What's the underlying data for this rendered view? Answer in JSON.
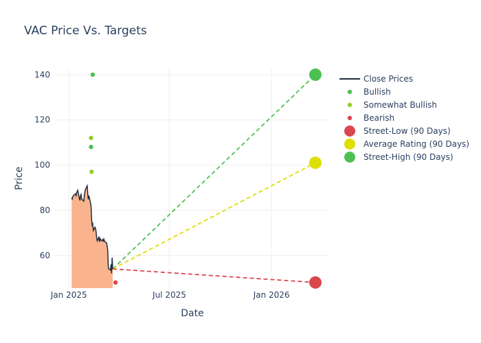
{
  "chart_data": {
    "type": "line",
    "title": "VAC Price Vs. Targets",
    "xlabel": "Date",
    "ylabel": "Price",
    "xlim": [
      "2024-12-07",
      "2026-04-16"
    ],
    "ylim": [
      45.5,
      143
    ],
    "x_ticks": [
      {
        "date": "2025-01-01",
        "label": "Jan 2025"
      },
      {
        "date": "2025-07-01",
        "label": "Jul 2025"
      },
      {
        "date": "2026-01-01",
        "label": "Jan 2026"
      }
    ],
    "y_ticks": [
      60,
      80,
      100,
      120,
      140
    ],
    "grid": true,
    "legend_position": "right",
    "colors": {
      "close": "#1f2d3d",
      "area": "#f9b48e",
      "bullish": "#4cc152",
      "somewhat_bullish": "#8fcf2b",
      "bearish": "#d9474d",
      "street_low": "#d9474d",
      "average": "#dede00",
      "street_high": "#4cc152"
    },
    "series": [
      {
        "name": "Close Prices",
        "kind": "line",
        "points": [
          [
            "2025-01-06",
            85.5
          ],
          [
            "2025-01-07",
            85.0
          ],
          [
            "2025-01-08",
            86.0
          ],
          [
            "2025-01-09",
            86.3
          ],
          [
            "2025-01-10",
            86.8
          ],
          [
            "2025-01-13",
            87.2
          ],
          [
            "2025-01-14",
            86.5
          ],
          [
            "2025-01-15",
            87.8
          ],
          [
            "2025-01-16",
            88.2
          ],
          [
            "2025-01-17",
            88.8
          ],
          [
            "2025-01-20",
            85.0
          ],
          [
            "2025-01-21",
            84.3
          ],
          [
            "2025-01-22",
            86.5
          ],
          [
            "2025-01-23",
            87.0
          ],
          [
            "2025-01-24",
            85.0
          ],
          [
            "2025-01-27",
            84.2
          ],
          [
            "2025-01-28",
            84.0
          ],
          [
            "2025-01-29",
            87.0
          ],
          [
            "2025-01-30",
            88.2
          ],
          [
            "2025-01-31",
            89.2
          ],
          [
            "2025-02-03",
            90.8
          ],
          [
            "2025-02-04",
            87.2
          ],
          [
            "2025-02-05",
            84.8
          ],
          [
            "2025-02-06",
            86.5
          ],
          [
            "2025-02-07",
            85.5
          ],
          [
            "2025-02-10",
            82.0
          ],
          [
            "2025-02-11",
            76.0
          ],
          [
            "2025-02-12",
            73.5
          ],
          [
            "2025-02-13",
            74.0
          ],
          [
            "2025-02-14",
            71.0
          ],
          [
            "2025-02-17",
            72.5
          ],
          [
            "2025-02-18",
            72.0
          ],
          [
            "2025-02-19",
            70.5
          ],
          [
            "2025-02-20",
            68.0
          ],
          [
            "2025-02-21",
            66.5
          ],
          [
            "2025-02-24",
            68.0
          ],
          [
            "2025-02-25",
            66.0
          ],
          [
            "2025-02-26",
            67.5
          ],
          [
            "2025-02-27",
            67.0
          ],
          [
            "2025-02-28",
            66.5
          ],
          [
            "2025-03-03",
            67.0
          ],
          [
            "2025-03-04",
            66.0
          ],
          [
            "2025-03-05",
            67.2
          ],
          [
            "2025-03-06",
            66.5
          ],
          [
            "2025-03-07",
            66.0
          ],
          [
            "2025-03-10",
            65.5
          ],
          [
            "2025-03-11",
            64.0
          ],
          [
            "2025-03-12",
            62.0
          ],
          [
            "2025-03-13",
            55.0
          ],
          [
            "2025-03-14",
            54.0
          ],
          [
            "2025-03-17",
            53.5
          ],
          [
            "2025-03-18",
            56.0
          ],
          [
            "2025-03-19",
            52.0
          ],
          [
            "2025-03-20",
            59.0
          ],
          [
            "2025-03-21",
            54.0
          ]
        ]
      },
      {
        "name": "Bullish",
        "kind": "marker",
        "points": [
          [
            "2025-02-13",
            140
          ],
          [
            "2025-02-10",
            108
          ]
        ]
      },
      {
        "name": "Somewhat Bullish",
        "kind": "marker",
        "points": [
          [
            "2025-02-10",
            112
          ],
          [
            "2025-02-11",
            97
          ]
        ]
      },
      {
        "name": "Bearish",
        "kind": "marker",
        "points": [
          [
            "2025-03-26",
            48
          ]
        ]
      },
      {
        "name": "Street-Low (90 Days)",
        "kind": "target",
        "points": [
          [
            "2025-03-21",
            54
          ],
          [
            "2026-03-21",
            48
          ]
        ]
      },
      {
        "name": "Average Rating (90 Days)",
        "kind": "target",
        "points": [
          [
            "2025-03-21",
            54
          ],
          [
            "2026-03-21",
            101
          ]
        ]
      },
      {
        "name": "Street-High (90 Days)",
        "kind": "target",
        "points": [
          [
            "2025-03-21",
            54
          ],
          [
            "2026-03-21",
            140
          ]
        ]
      }
    ]
  }
}
